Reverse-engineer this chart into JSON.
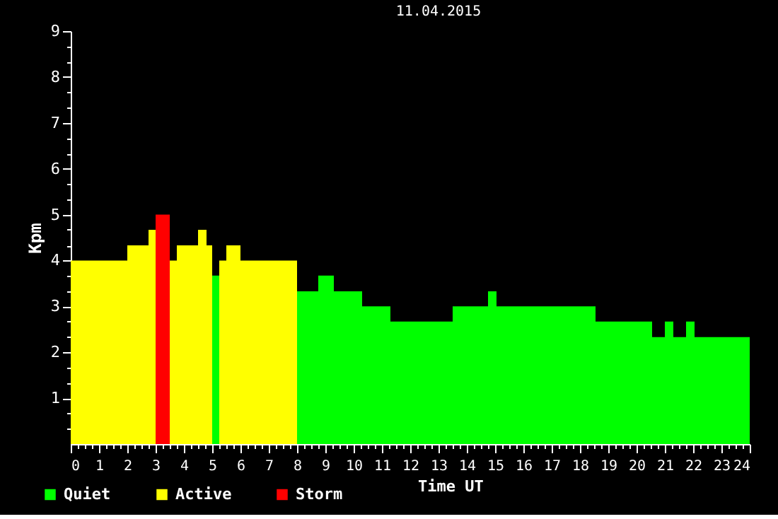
{
  "chart_data": {
    "type": "histogram",
    "title": "11.04.2015",
    "xlabel": "Time UT",
    "ylabel": "Kpm",
    "bins": [
      0,
      2,
      2.75,
      3,
      3.5,
      3.75,
      4.5,
      4.8,
      5,
      5.25,
      5.5,
      6,
      8,
      8.75,
      9.3,
      10.3,
      11.3,
      13.5,
      14.75,
      15.05,
      18.55,
      20.55,
      21,
      21.3,
      21.75,
      22.05,
      24
    ],
    "series": [
      {
        "name": "Quiet",
        "color": "#00ff00",
        "values": [
          null,
          null,
          null,
          null,
          null,
          null,
          null,
          null,
          3.67,
          null,
          null,
          null,
          3.33,
          3.67,
          3.33,
          3,
          2.67,
          3,
          3.33,
          3,
          2.67,
          2.33,
          2.67,
          2.33,
          2.67,
          2.33
        ]
      },
      {
        "name": "Active",
        "color": "#ffff00",
        "values": [
          4,
          4.33,
          4.67,
          null,
          4,
          4.33,
          4.67,
          4.33,
          null,
          4,
          4.33,
          4,
          null,
          null,
          null,
          null,
          null,
          null,
          null,
          null,
          null,
          null,
          null,
          null,
          null,
          null
        ]
      },
      {
        "name": "Storm",
        "color": "#ff0000",
        "values": [
          null,
          null,
          null,
          5,
          null,
          null,
          null,
          null,
          null,
          null,
          null,
          null,
          null,
          null,
          null,
          null,
          null,
          null,
          null,
          null,
          null,
          null,
          null,
          null,
          null,
          null
        ]
      }
    ],
    "xlim": [
      0,
      24
    ],
    "ylim": [
      0,
      9
    ],
    "xticks": [
      0,
      {
        "value": 0.25,
        "label": null
      },
      {
        "value": 0.5,
        "label": null
      },
      {
        "value": 0.75,
        "label": null
      },
      1,
      {
        "value": 1.25,
        "label": null
      },
      {
        "value": 1.5,
        "label": null
      },
      {
        "value": 1.75,
        "label": null
      },
      2,
      {
        "value": 2.25,
        "label": null
      },
      {
        "value": 2.5,
        "label": null
      },
      {
        "value": 2.75,
        "label": null
      },
      3,
      {
        "value": 3.25,
        "label": null
      },
      {
        "value": 3.5,
        "label": null
      },
      {
        "value": 3.75,
        "label": null
      },
      4,
      {
        "value": 4.25,
        "label": null
      },
      {
        "value": 4.5,
        "label": null
      },
      {
        "value": 4.75,
        "label": null
      },
      5,
      {
        "value": 5.25,
        "label": null
      },
      {
        "value": 5.5,
        "label": null
      },
      {
        "value": 5.75,
        "label": null
      },
      6,
      {
        "value": 6.25,
        "label": null
      },
      {
        "value": 6.5,
        "label": null
      },
      {
        "value": 6.75,
        "label": null
      },
      7,
      {
        "value": 7.25,
        "label": null
      },
      {
        "value": 7.5,
        "label": null
      },
      {
        "value": 7.75,
        "label": null
      },
      8,
      {
        "value": 8.25,
        "label": null
      },
      {
        "value": 8.5,
        "label": null
      },
      {
        "value": 8.75,
        "label": null
      },
      9,
      {
        "value": 9.25,
        "label": null
      },
      {
        "value": 9.5,
        "label": null
      },
      {
        "value": 9.75,
        "label": null
      },
      10,
      {
        "value": 10.25,
        "label": null
      },
      {
        "value": 10.5,
        "label": null
      },
      {
        "value": 10.75,
        "label": null
      },
      11,
      {
        "value": 11.25,
        "label": null
      },
      {
        "value": 11.5,
        "label": null
      },
      {
        "value": 11.75,
        "label": null
      },
      12,
      {
        "value": 12.25,
        "label": null
      },
      {
        "value": 12.5,
        "label": null
      },
      {
        "value": 12.75,
        "label": null
      },
      13,
      {
        "value": 13.25,
        "label": null
      },
      {
        "value": 13.5,
        "label": null
      },
      {
        "value": 13.75,
        "label": null
      },
      14,
      {
        "value": 14.25,
        "label": null
      },
      {
        "value": 14.5,
        "label": null
      },
      {
        "value": 14.75,
        "label": null
      },
      15,
      {
        "value": 15.25,
        "label": null
      },
      {
        "value": 15.5,
        "label": null
      },
      {
        "value": 15.75,
        "label": null
      },
      16,
      {
        "value": 16.25,
        "label": null
      },
      {
        "value": 16.5,
        "label": null
      },
      {
        "value": 16.75,
        "label": null
      },
      17,
      {
        "value": 17.25,
        "label": null
      },
      {
        "value": 17.5,
        "label": null
      },
      {
        "value": 17.75,
        "label": null
      },
      18,
      {
        "value": 18.25,
        "label": null
      },
      {
        "value": 18.5,
        "label": null
      },
      {
        "value": 18.75,
        "label": null
      },
      19,
      {
        "value": 19.25,
        "label": null
      },
      {
        "value": 19.5,
        "label": null
      },
      {
        "value": 19.75,
        "label": null
      },
      20,
      {
        "value": 20.25,
        "label": null
      },
      {
        "value": 20.5,
        "label": null
      },
      {
        "value": 20.75,
        "label": null
      },
      21,
      {
        "value": 21.25,
        "label": null
      },
      {
        "value": 21.5,
        "label": null
      },
      {
        "value": 21.75,
        "label": null
      },
      22,
      {
        "value": 22.25,
        "label": null
      },
      {
        "value": 22.5,
        "label": null
      },
      {
        "value": 22.75,
        "label": null
      },
      23,
      {
        "value": 23.25,
        "label": null
      },
      {
        "value": 23.5,
        "label": null
      },
      {
        "value": 23.75,
        "label": null
      },
      24
    ],
    "yticks": [
      {
        "value": 0.33,
        "label": null
      },
      {
        "value": 0.67,
        "label": null
      },
      1,
      {
        "value": 1.33,
        "label": null
      },
      {
        "value": 1.67,
        "label": null
      },
      2,
      {
        "value": 2.33,
        "label": null
      },
      {
        "value": 2.67,
        "label": null
      },
      3,
      {
        "value": 3.33,
        "label": null
      },
      {
        "value": 3.67,
        "label": null
      },
      4,
      {
        "value": 4.33,
        "label": null
      },
      {
        "value": 4.67,
        "label": null
      },
      5,
      {
        "value": 5.33,
        "label": null
      },
      {
        "value": 5.67,
        "label": null
      },
      6,
      {
        "value": 6.33,
        "label": null
      },
      {
        "value": 6.67,
        "label": null
      },
      7,
      {
        "value": 7.33,
        "label": null
      },
      {
        "value": 7.67,
        "label": null
      },
      8,
      {
        "value": 8.33,
        "label": null
      },
      {
        "value": 8.67,
        "label": null
      },
      9
    ],
    "grid": false,
    "legend": "bottom left"
  }
}
